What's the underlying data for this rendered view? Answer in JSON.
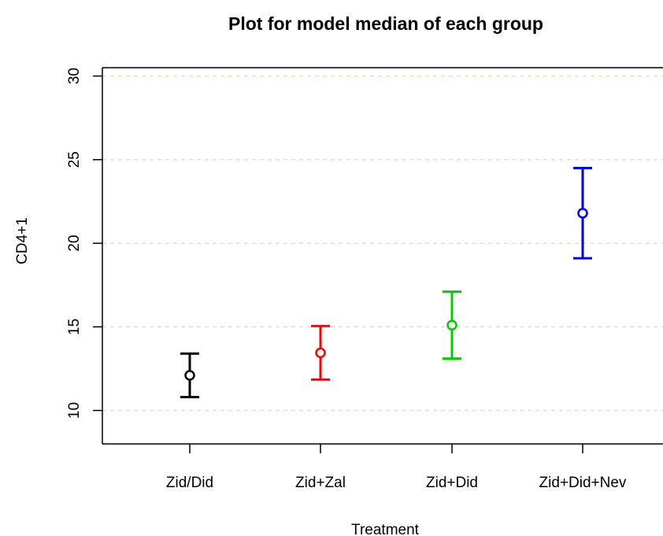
{
  "chart_data": {
    "type": "scatter",
    "title": "Plot for model median of each group",
    "xlabel": "Treatment",
    "ylabel": "CD4+1",
    "categories": [
      "Zid/Did",
      "Zid+Zal",
      "Zid+Did",
      "Zid+Did+Nev"
    ],
    "series": [
      {
        "median": [
          12.1,
          13.45,
          15.1,
          21.8
        ],
        "lower": [
          10.8,
          11.85,
          13.1,
          19.1
        ],
        "upper": [
          13.4,
          15.05,
          17.1,
          24.5
        ],
        "colors": [
          "#000000",
          "#ff0000",
          "#00cd00",
          "#0000ff"
        ]
      }
    ],
    "ylim": [
      8,
      30.5
    ],
    "yticks": [
      10,
      15,
      20,
      25,
      30
    ],
    "grid": true,
    "grid_color": "#e0dfc8",
    "legend": false
  }
}
